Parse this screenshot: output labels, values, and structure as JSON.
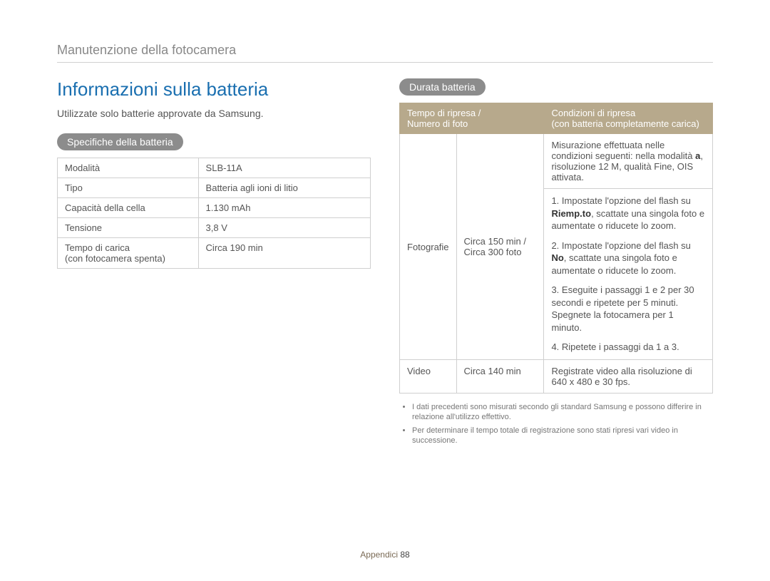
{
  "breadcrumb": "Manutenzione della fotocamera",
  "title": "Informazioni sulla batteria",
  "intro": "Utilizzate solo batterie approvate da Samsung.",
  "spec_pill": "Specifiche della batteria",
  "spec_table": {
    "rows": [
      {
        "label": "Modalità",
        "value": "SLB-11A"
      },
      {
        "label": "Tipo",
        "value": "Batteria agli ioni di litio"
      },
      {
        "label": "Capacità della cella",
        "value": "1.130 mAh"
      },
      {
        "label": "Tensione",
        "value": "3,8 V"
      },
      {
        "label": "Tempo di carica\n(con fotocamera spenta)",
        "value": "Circa 190 min"
      }
    ]
  },
  "dur_pill": "Durata batteria",
  "dur_table": {
    "head1": "Tempo di ripresa /\nNumero di foto",
    "head2": "Condizioni di ripresa\n(con batteria completamente carica)",
    "foto_label": "Fotografie",
    "foto_time": "Circa 150 min /\nCirca 300 foto",
    "cond_intro_a": "Misurazione effettuata nelle condizioni seguenti: nella modalità ",
    "cond_intro_mode": "a",
    "cond_intro_b": ", risoluzione 12 M, qualità Fine, OIS attivata.",
    "step1_a": "1. Impostate l'opzione del flash su ",
    "step1_bold": "Riemp.to",
    "step1_b": ", scattate una singola foto e aumentate o riducete lo zoom.",
    "step2_a": "2. Impostate l'opzione del flash su ",
    "step2_bold": "No",
    "step2_b": ", scattate una singola foto e aumentate o riducete lo zoom.",
    "step3": "3. Eseguite i passaggi 1 e 2 per 30 secondi e ripetete per 5 minuti. Spegnete la fotocamera per 1 minuto.",
    "step4": "4. Ripetete i passaggi da 1 a 3.",
    "video_label": "Video",
    "video_time": "Circa 140 min",
    "video_cond": "Registrate video alla risoluzione di 640 x 480 e 30 fps."
  },
  "footnotes": [
    "I dati precedenti sono misurati secondo gli standard Samsung e possono differire in relazione all'utilizzo effettivo.",
    "Per determinare il tempo totale di registrazione sono stati ripresi vari video in successione."
  ],
  "footer_section": "Appendici",
  "footer_page": "88"
}
